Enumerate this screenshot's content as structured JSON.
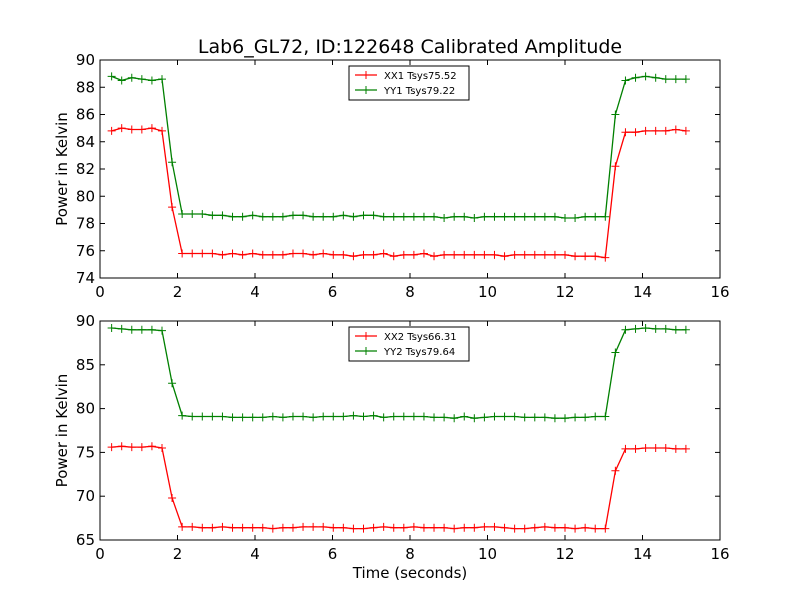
{
  "title": "Lab6_GL72, ID:122648 Calibrated Amplitude",
  "xlabel": "Time (seconds)",
  "chart_data": [
    {
      "type": "line",
      "title": "Lab6_GL72, ID:122648 Calibrated Amplitude",
      "xlabel": "",
      "ylabel": "Power in Kelvin",
      "xlim": [
        0,
        16
      ],
      "ylim": [
        74,
        90
      ],
      "xticks": [
        "0",
        "2",
        "4",
        "6",
        "8",
        "10",
        "12",
        "14",
        "16"
      ],
      "yticks": [
        "74",
        "76",
        "78",
        "80",
        "82",
        "84",
        "86",
        "88",
        "90"
      ],
      "legend_position": "top-center",
      "grid": false,
      "series": [
        {
          "name": "XX1 Tsys75.52",
          "color": "#ff0000",
          "x": [
            0.3,
            0.56,
            0.82,
            1.08,
            1.34,
            1.6,
            1.86,
            2.12,
            2.38,
            2.64,
            2.9,
            3.16,
            3.42,
            3.68,
            3.94,
            4.2,
            4.46,
            4.72,
            4.98,
            5.24,
            5.5,
            5.76,
            6.02,
            6.28,
            6.54,
            6.8,
            7.06,
            7.32,
            7.58,
            7.84,
            8.1,
            8.36,
            8.62,
            8.88,
            9.14,
            9.4,
            9.66,
            9.92,
            10.18,
            10.44,
            10.7,
            10.96,
            11.22,
            11.48,
            11.74,
            12.0,
            12.26,
            12.52,
            12.78,
            13.04,
            13.3,
            13.56,
            13.82,
            14.08,
            14.34,
            14.6,
            14.86,
            15.12
          ],
          "y": [
            84.8,
            85.0,
            84.9,
            84.9,
            85.0,
            84.8,
            79.2,
            75.8,
            75.8,
            75.8,
            75.8,
            75.7,
            75.8,
            75.7,
            75.8,
            75.7,
            75.7,
            75.7,
            75.8,
            75.8,
            75.7,
            75.8,
            75.7,
            75.7,
            75.6,
            75.7,
            75.7,
            75.8,
            75.6,
            75.7,
            75.7,
            75.8,
            75.6,
            75.7,
            75.7,
            75.7,
            75.7,
            75.7,
            75.7,
            75.6,
            75.7,
            75.7,
            75.7,
            75.7,
            75.7,
            75.7,
            75.6,
            75.6,
            75.6,
            75.5,
            82.2,
            84.7,
            84.7,
            84.8,
            84.8,
            84.8,
            84.9,
            84.8
          ]
        },
        {
          "name": "YY1 Tsys79.22",
          "color": "#008000",
          "x": [
            0.3,
            0.56,
            0.82,
            1.08,
            1.34,
            1.6,
            1.86,
            2.12,
            2.38,
            2.64,
            2.9,
            3.16,
            3.42,
            3.68,
            3.94,
            4.2,
            4.46,
            4.72,
            4.98,
            5.24,
            5.5,
            5.76,
            6.02,
            6.28,
            6.54,
            6.8,
            7.06,
            7.32,
            7.58,
            7.84,
            8.1,
            8.36,
            8.62,
            8.88,
            9.14,
            9.4,
            9.66,
            9.92,
            10.18,
            10.44,
            10.7,
            10.96,
            11.22,
            11.48,
            11.74,
            12.0,
            12.26,
            12.52,
            12.78,
            13.04,
            13.3,
            13.56,
            13.82,
            14.08,
            14.34,
            14.6,
            14.86,
            15.12
          ],
          "y": [
            88.8,
            88.5,
            88.7,
            88.6,
            88.5,
            88.6,
            82.5,
            78.7,
            78.7,
            78.7,
            78.6,
            78.6,
            78.5,
            78.5,
            78.6,
            78.5,
            78.5,
            78.5,
            78.6,
            78.6,
            78.5,
            78.5,
            78.5,
            78.6,
            78.5,
            78.6,
            78.6,
            78.5,
            78.5,
            78.5,
            78.5,
            78.5,
            78.5,
            78.4,
            78.5,
            78.5,
            78.4,
            78.5,
            78.5,
            78.5,
            78.5,
            78.5,
            78.5,
            78.5,
            78.5,
            78.4,
            78.4,
            78.5,
            78.5,
            78.5,
            86.0,
            88.5,
            88.7,
            88.8,
            88.7,
            88.6,
            88.6,
            88.6
          ]
        }
      ]
    },
    {
      "type": "line",
      "title": "",
      "xlabel": "Time (seconds)",
      "ylabel": "Power in Kelvin",
      "xlim": [
        0,
        16
      ],
      "ylim": [
        65,
        90
      ],
      "xticks": [
        "0",
        "2",
        "4",
        "6",
        "8",
        "10",
        "12",
        "14",
        "16"
      ],
      "yticks": [
        "65",
        "70",
        "75",
        "80",
        "85",
        "90"
      ],
      "legend_position": "top-center",
      "grid": false,
      "series": [
        {
          "name": "XX2 Tsys66.31",
          "color": "#ff0000",
          "x": [
            0.3,
            0.56,
            0.82,
            1.08,
            1.34,
            1.6,
            1.86,
            2.12,
            2.38,
            2.64,
            2.9,
            3.16,
            3.42,
            3.68,
            3.94,
            4.2,
            4.46,
            4.72,
            4.98,
            5.24,
            5.5,
            5.76,
            6.02,
            6.28,
            6.54,
            6.8,
            7.06,
            7.32,
            7.58,
            7.84,
            8.1,
            8.36,
            8.62,
            8.88,
            9.14,
            9.4,
            9.66,
            9.92,
            10.18,
            10.44,
            10.7,
            10.96,
            11.22,
            11.48,
            11.74,
            12.0,
            12.26,
            12.52,
            12.78,
            13.04,
            13.3,
            13.56,
            13.82,
            14.08,
            14.34,
            14.6,
            14.86,
            15.12
          ],
          "y": [
            75.6,
            75.7,
            75.6,
            75.6,
            75.7,
            75.5,
            69.8,
            66.5,
            66.5,
            66.4,
            66.4,
            66.5,
            66.4,
            66.4,
            66.4,
            66.4,
            66.3,
            66.4,
            66.4,
            66.5,
            66.5,
            66.5,
            66.4,
            66.4,
            66.3,
            66.3,
            66.4,
            66.5,
            66.4,
            66.4,
            66.5,
            66.4,
            66.4,
            66.4,
            66.3,
            66.4,
            66.4,
            66.5,
            66.5,
            66.4,
            66.3,
            66.3,
            66.4,
            66.5,
            66.4,
            66.4,
            66.3,
            66.4,
            66.3,
            66.3,
            72.9,
            75.4,
            75.4,
            75.5,
            75.5,
            75.5,
            75.4,
            75.4
          ]
        },
        {
          "name": "YY2 Tsys79.64",
          "color": "#008000",
          "x": [
            0.3,
            0.56,
            0.82,
            1.08,
            1.34,
            1.6,
            1.86,
            2.12,
            2.38,
            2.64,
            2.9,
            3.16,
            3.42,
            3.68,
            3.94,
            4.2,
            4.46,
            4.72,
            4.98,
            5.24,
            5.5,
            5.76,
            6.02,
            6.28,
            6.54,
            6.8,
            7.06,
            7.32,
            7.58,
            7.84,
            8.1,
            8.36,
            8.62,
            8.88,
            9.14,
            9.4,
            9.66,
            9.92,
            10.18,
            10.44,
            10.7,
            10.96,
            11.22,
            11.48,
            11.74,
            12.0,
            12.26,
            12.52,
            12.78,
            13.04,
            13.3,
            13.56,
            13.82,
            14.08,
            14.34,
            14.6,
            14.86,
            15.12
          ],
          "y": [
            89.2,
            89.1,
            89.0,
            89.0,
            89.0,
            88.9,
            82.9,
            79.2,
            79.1,
            79.1,
            79.1,
            79.1,
            79.0,
            79.0,
            79.0,
            79.0,
            79.1,
            79.0,
            79.1,
            79.1,
            79.0,
            79.1,
            79.1,
            79.1,
            79.2,
            79.1,
            79.2,
            79.0,
            79.1,
            79.1,
            79.1,
            79.1,
            79.0,
            79.0,
            78.9,
            79.1,
            78.9,
            79.0,
            79.1,
            79.1,
            79.1,
            79.0,
            79.0,
            79.0,
            78.9,
            78.9,
            79.0,
            79.0,
            79.1,
            79.1,
            86.4,
            89.0,
            89.1,
            89.2,
            89.1,
            89.1,
            89.0,
            89.0
          ]
        }
      ]
    }
  ]
}
